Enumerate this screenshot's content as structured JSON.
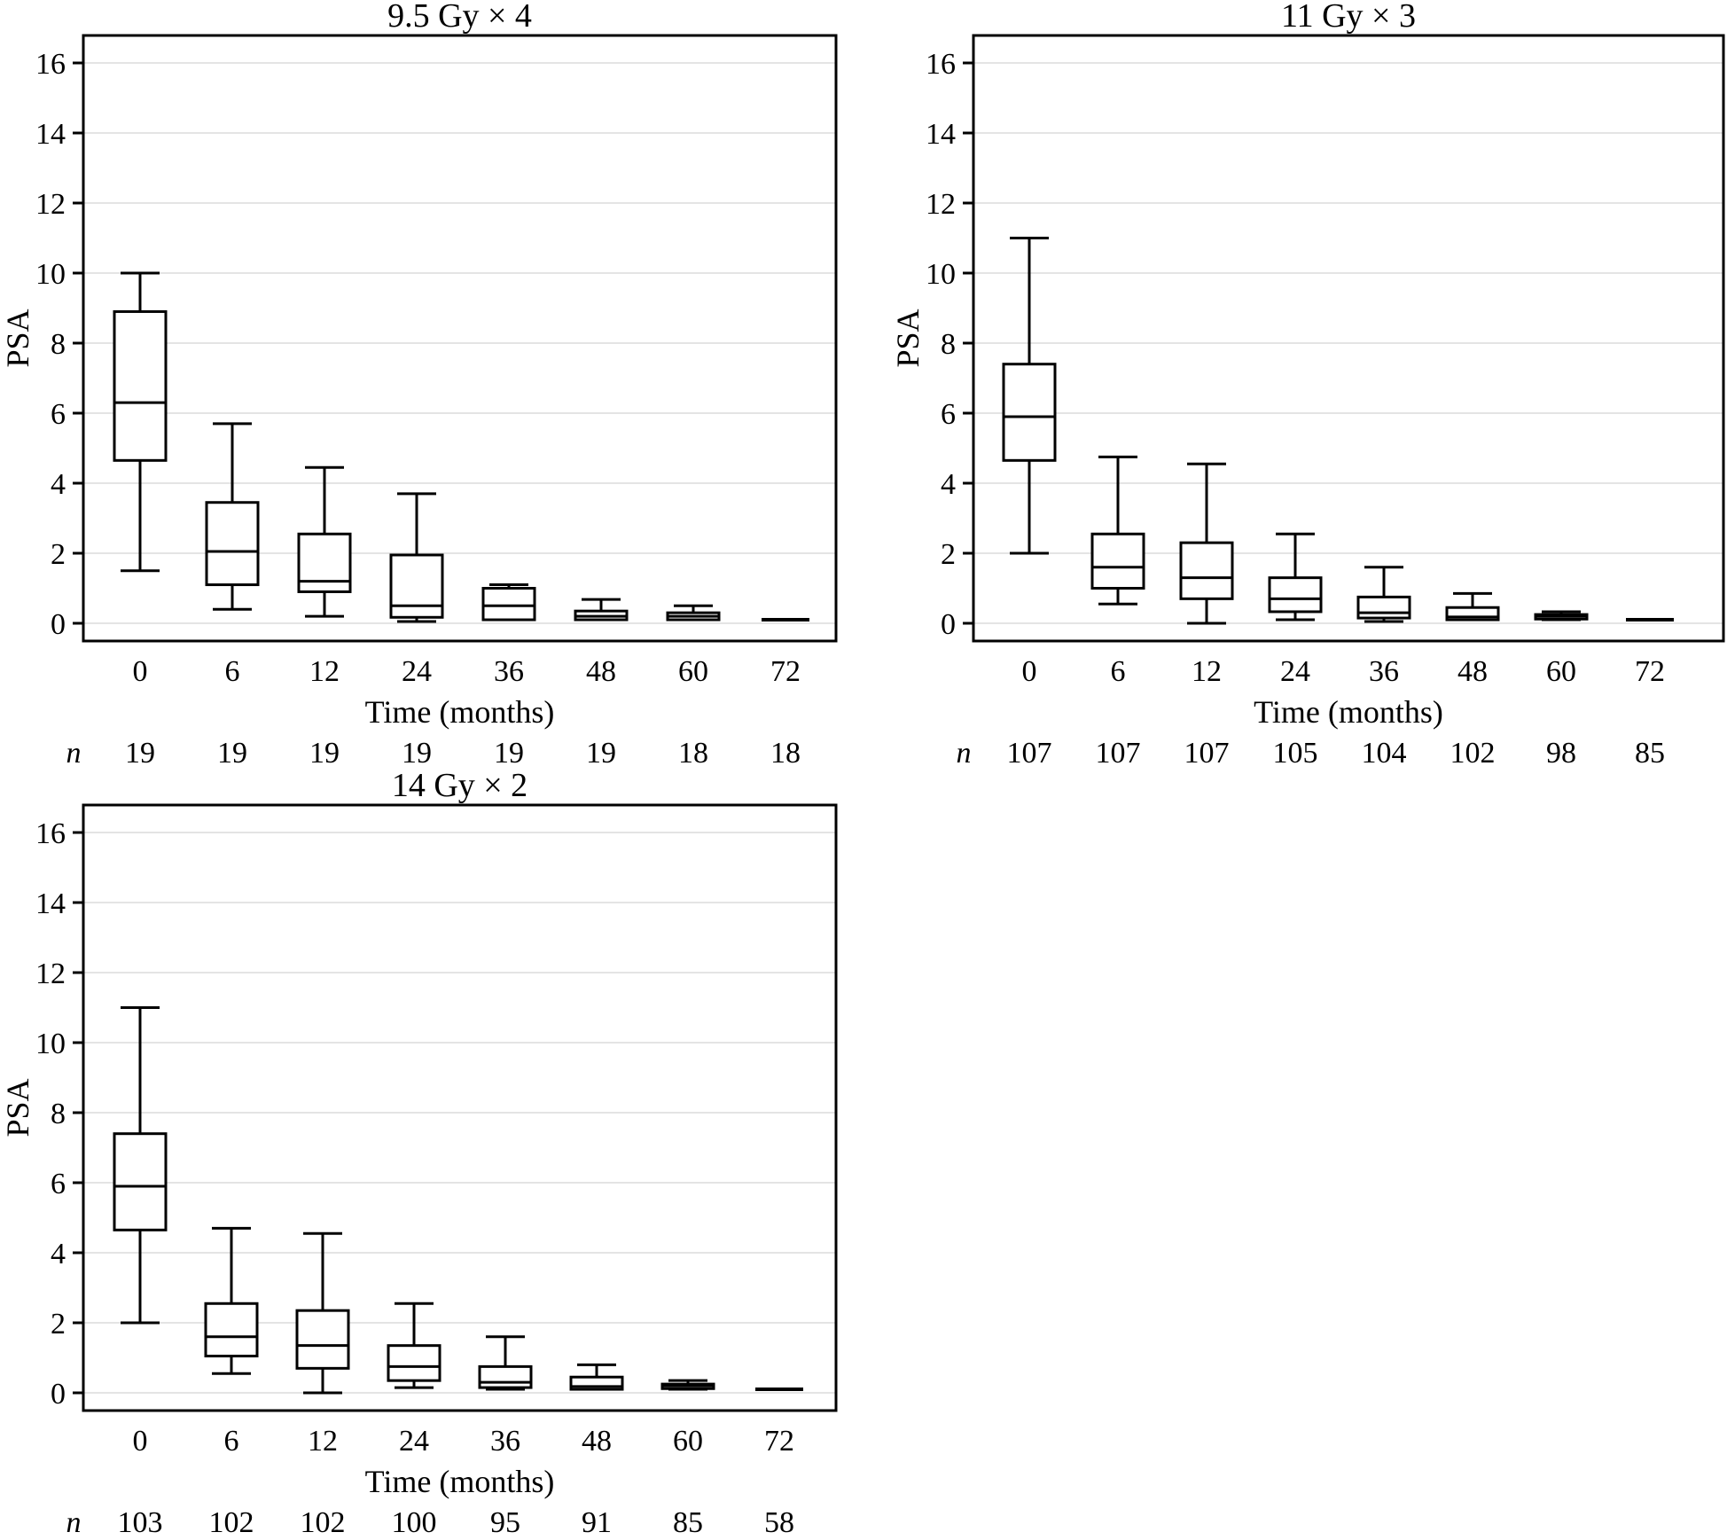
{
  "figure": {
    "description": "Three box-plot panels of PSA over time by radiotherapy dose regimen",
    "background": "#ffffff"
  },
  "colors": {
    "stroke": "#000000",
    "gridline": "#e4e4e4",
    "text": "#000000",
    "box_fill": "#ffffff"
  },
  "chart_data": [
    {
      "type": "box",
      "title": "9.5 Gy × 4",
      "xlabel": "Time (months)",
      "ylabel": "PSA",
      "categories": [
        "0",
        "6",
        "12",
        "24",
        "36",
        "48",
        "60",
        "72"
      ],
      "yticks": [
        0,
        2,
        4,
        6,
        8,
        10,
        12,
        14,
        16
      ],
      "ylim": [
        -0.5,
        16.8
      ],
      "grid": true,
      "n_label": "n",
      "n": [
        19,
        19,
        19,
        19,
        19,
        19,
        18,
        18
      ],
      "boxes": [
        {
          "low": 1.5,
          "q1": 4.65,
          "median": 6.3,
          "q3": 8.9,
          "high": 10.0
        },
        {
          "low": 0.4,
          "q1": 1.1,
          "median": 2.05,
          "q3": 3.45,
          "high": 5.7
        },
        {
          "low": 0.2,
          "q1": 0.9,
          "median": 1.2,
          "q3": 2.55,
          "high": 4.45
        },
        {
          "low": 0.05,
          "q1": 0.17,
          "median": 0.5,
          "q3": 1.95,
          "high": 3.7
        },
        {
          "low": 0.1,
          "q1": 0.1,
          "median": 0.5,
          "q3": 1.0,
          "high": 1.1
        },
        {
          "low": 0.1,
          "q1": 0.1,
          "median": 0.2,
          "q3": 0.35,
          "high": 0.68
        },
        {
          "low": 0.1,
          "q1": 0.1,
          "median": 0.2,
          "q3": 0.3,
          "high": 0.5
        },
        {
          "low": 0.1,
          "q1": 0.1,
          "median": 0.1,
          "q3": 0.1,
          "high": 0.1
        }
      ]
    },
    {
      "type": "box",
      "title": "11 Gy × 3",
      "xlabel": "Time (months)",
      "ylabel": "PSA",
      "categories": [
        "0",
        "6",
        "12",
        "24",
        "36",
        "48",
        "60",
        "72"
      ],
      "yticks": [
        0,
        2,
        4,
        6,
        8,
        10,
        12,
        14,
        16
      ],
      "ylim": [
        -0.5,
        16.8
      ],
      "grid": true,
      "n_label": "n",
      "n": [
        107,
        107,
        107,
        105,
        104,
        102,
        98,
        85
      ],
      "boxes": [
        {
          "low": 2.0,
          "q1": 4.65,
          "median": 5.9,
          "q3": 7.4,
          "high": 11.0
        },
        {
          "low": 0.55,
          "q1": 1.0,
          "median": 1.6,
          "q3": 2.55,
          "high": 4.75
        },
        {
          "low": 0.0,
          "q1": 0.7,
          "median": 1.3,
          "q3": 2.3,
          "high": 4.55
        },
        {
          "low": 0.1,
          "q1": 0.33,
          "median": 0.7,
          "q3": 1.3,
          "high": 2.55
        },
        {
          "low": 0.05,
          "q1": 0.15,
          "median": 0.3,
          "q3": 0.75,
          "high": 1.6
        },
        {
          "low": 0.1,
          "q1": 0.1,
          "median": 0.18,
          "q3": 0.45,
          "high": 0.85
        },
        {
          "low": 0.1,
          "q1": 0.12,
          "median": 0.2,
          "q3": 0.25,
          "high": 0.33
        },
        {
          "low": 0.1,
          "q1": 0.1,
          "median": 0.1,
          "q3": 0.1,
          "high": 0.1
        }
      ]
    },
    {
      "type": "box",
      "title": "14 Gy × 2",
      "xlabel": "Time (months)",
      "ylabel": "PSA",
      "categories": [
        "0",
        "6",
        "12",
        "24",
        "36",
        "48",
        "60",
        "72"
      ],
      "yticks": [
        0,
        2,
        4,
        6,
        8,
        10,
        12,
        14,
        16
      ],
      "ylim": [
        -0.5,
        16.8
      ],
      "grid": true,
      "n_label": "n",
      "n": [
        103,
        102,
        102,
        100,
        95,
        91,
        85,
        58
      ],
      "boxes": [
        {
          "low": 2.0,
          "q1": 4.65,
          "median": 5.9,
          "q3": 7.4,
          "high": 11.0
        },
        {
          "low": 0.55,
          "q1": 1.05,
          "median": 1.6,
          "q3": 2.55,
          "high": 4.7
        },
        {
          "low": 0.0,
          "q1": 0.7,
          "median": 1.35,
          "q3": 2.35,
          "high": 4.55
        },
        {
          "low": 0.15,
          "q1": 0.35,
          "median": 0.75,
          "q3": 1.35,
          "high": 2.55
        },
        {
          "low": 0.1,
          "q1": 0.15,
          "median": 0.3,
          "q3": 0.75,
          "high": 1.6
        },
        {
          "low": 0.1,
          "q1": 0.1,
          "median": 0.18,
          "q3": 0.45,
          "high": 0.8
        },
        {
          "low": 0.1,
          "q1": 0.12,
          "median": 0.2,
          "q3": 0.25,
          "high": 0.35
        },
        {
          "low": 0.1,
          "q1": 0.1,
          "median": 0.1,
          "q3": 0.1,
          "high": 0.1
        }
      ]
    }
  ]
}
